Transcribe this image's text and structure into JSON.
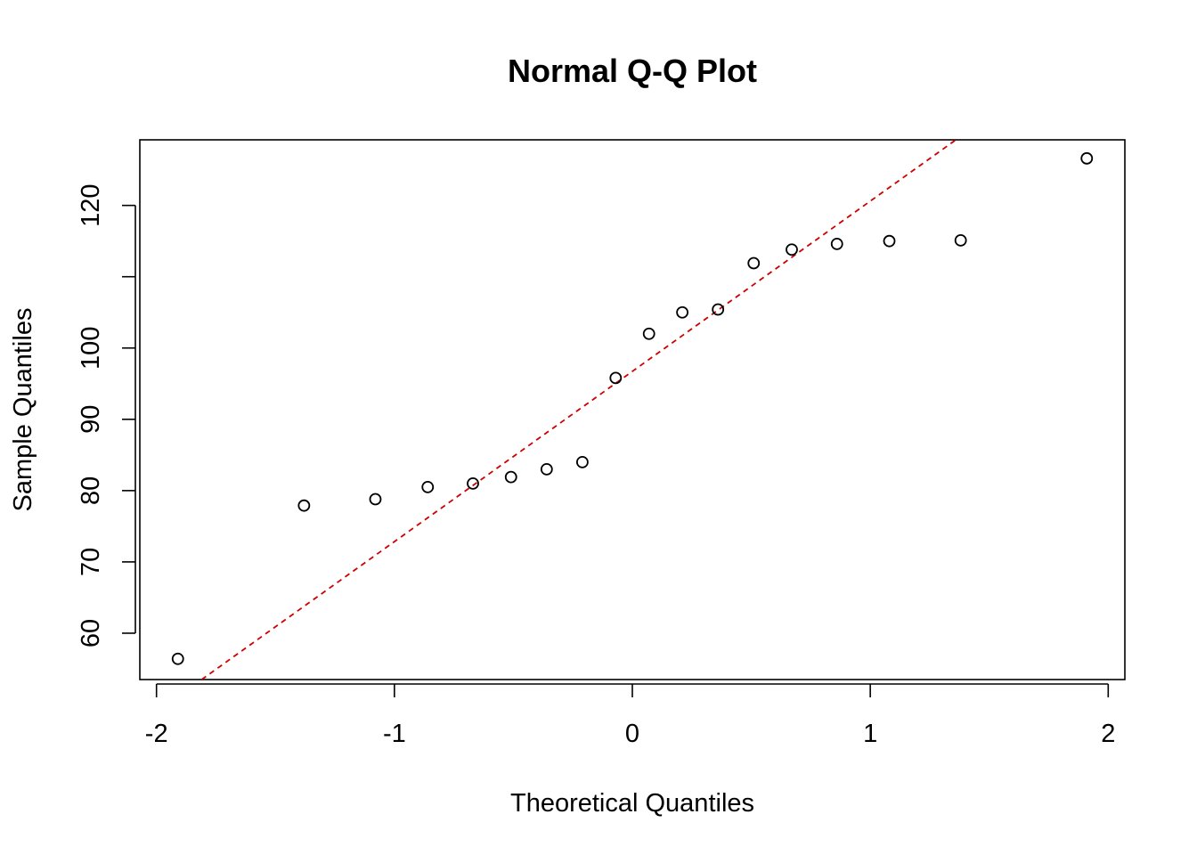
{
  "chart_data": {
    "type": "scatter",
    "title": "Normal Q-Q Plot",
    "xlabel": "Theoretical Quantiles",
    "ylabel": "Sample Quantiles",
    "xlim": [
      -2.07,
      2.07
    ],
    "ylim": [
      53.5,
      129.2
    ],
    "x_ticks": [
      -2,
      -1,
      0,
      1,
      2
    ],
    "y_ticks": [
      60,
      70,
      80,
      90,
      100,
      110,
      120
    ],
    "y_tick_labels": [
      "60",
      "70",
      "80",
      "90",
      "100",
      "",
      "120"
    ],
    "grid": false,
    "points": [
      {
        "x": -1.91,
        "y": 56.4
      },
      {
        "x": -1.38,
        "y": 77.9
      },
      {
        "x": -1.08,
        "y": 78.8
      },
      {
        "x": -0.86,
        "y": 80.5
      },
      {
        "x": -0.67,
        "y": 81.0
      },
      {
        "x": -0.51,
        "y": 81.9
      },
      {
        "x": -0.36,
        "y": 83.0
      },
      {
        "x": -0.21,
        "y": 84.0
      },
      {
        "x": -0.07,
        "y": 95.8
      },
      {
        "x": 0.07,
        "y": 102.0
      },
      {
        "x": 0.21,
        "y": 105.0
      },
      {
        "x": 0.36,
        "y": 105.4
      },
      {
        "x": 0.51,
        "y": 111.9
      },
      {
        "x": 0.67,
        "y": 113.8
      },
      {
        "x": 0.86,
        "y": 114.6
      },
      {
        "x": 1.08,
        "y": 115.0
      },
      {
        "x": 1.38,
        "y": 115.1
      },
      {
        "x": 1.91,
        "y": 126.6
      }
    ],
    "reference_line": {
      "x": [
        -1.81,
        1.36
      ],
      "y": [
        53.5,
        129.2
      ],
      "color": "#d00000",
      "style": "dashed"
    },
    "point_color": "#000000"
  }
}
